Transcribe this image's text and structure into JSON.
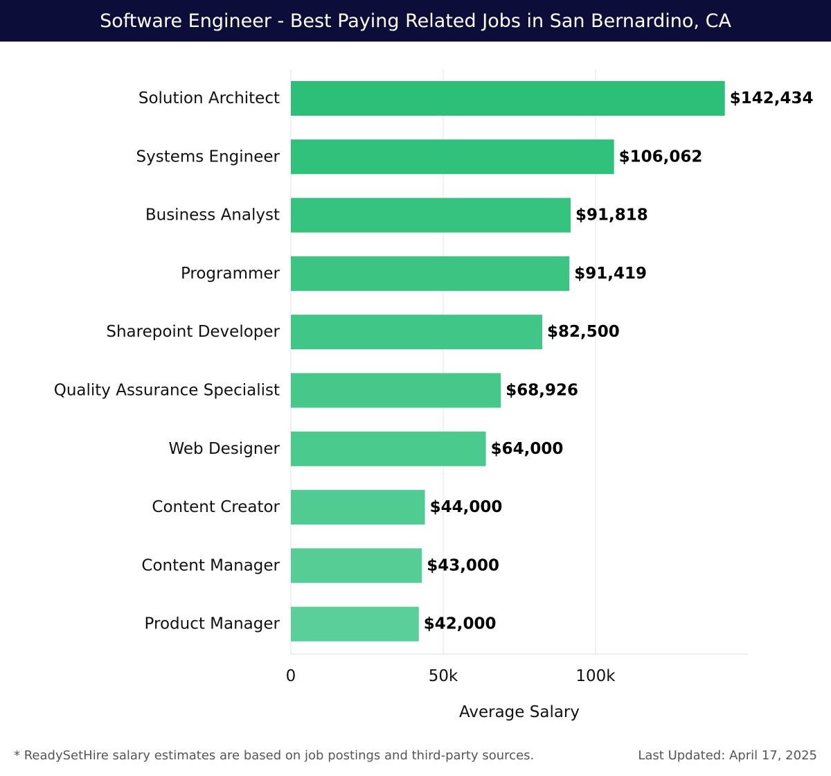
{
  "header": {
    "title": "Software Engineer - Best Paying Related Jobs in San Bernardino, CA"
  },
  "footer": {
    "note": "* ReadySetHire salary estimates are based on job postings and third-party sources.",
    "updated": "Last Updated: April 17, 2025"
  },
  "colors": {
    "header_bg": "#0d0d3a",
    "bar_top": "#2bbf77",
    "bar_bottom": "#5bcf99",
    "grid": "#e3e3e3"
  },
  "chart_data": {
    "type": "bar",
    "orientation": "horizontal",
    "title": "Software Engineer - Best Paying Related Jobs in San Bernardino, CA",
    "xlabel": "Average Salary",
    "ylabel": "",
    "xlim": [
      0,
      150000
    ],
    "grid": true,
    "xticks": [
      0,
      50000,
      100000
    ],
    "xtick_labels": [
      "0",
      "50k",
      "100k"
    ],
    "categories": [
      "Solution Architect",
      "Systems Engineer",
      "Business Analyst",
      "Programmer",
      "Sharepoint Developer",
      "Quality Assurance Specialist",
      "Web Designer",
      "Content Creator",
      "Content Manager",
      "Product Manager"
    ],
    "values": [
      142434,
      106062,
      91818,
      91419,
      82500,
      68926,
      64000,
      44000,
      43000,
      42000
    ],
    "value_labels": [
      "$142,434",
      "$106,062",
      "$91,818",
      "$91,419",
      "$82,500",
      "$68,926",
      "$64,000",
      "$44,000",
      "$43,000",
      "$42,000"
    ]
  }
}
